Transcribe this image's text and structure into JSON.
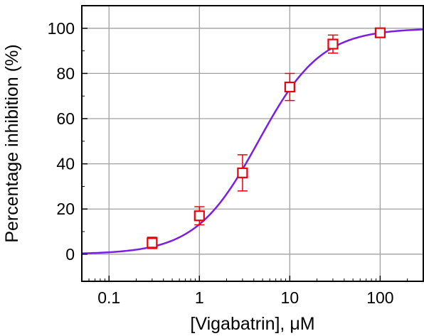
{
  "chart_data": {
    "type": "scatter",
    "xlabel": "[Vigabatrin], μM",
    "ylabel": "Percentage inhibition (%)",
    "x_scale": "log",
    "xlim": [
      0.05,
      300
    ],
    "ylim": [
      -12,
      110
    ],
    "grid": true,
    "x_ticks": [
      {
        "value": 0.1,
        "label": "0.1"
      },
      {
        "value": 1,
        "label": "1"
      },
      {
        "value": 10,
        "label": "10"
      },
      {
        "value": 100,
        "label": "100"
      }
    ],
    "y_ticks": [
      {
        "value": 0,
        "label": "0"
      },
      {
        "value": 20,
        "label": "20"
      },
      {
        "value": 40,
        "label": "40"
      },
      {
        "value": 60,
        "label": "60"
      },
      {
        "value": 80,
        "label": "80"
      },
      {
        "value": 100,
        "label": "100"
      }
    ],
    "points": [
      {
        "x": 0.3,
        "y": 5,
        "err_low": 2.5,
        "err_high": 7.5
      },
      {
        "x": 1,
        "y": 17,
        "err_low": 13,
        "err_high": 21
      },
      {
        "x": 3,
        "y": 36,
        "err_low": 28,
        "err_high": 44
      },
      {
        "x": 10,
        "y": 74,
        "err_low": 68,
        "err_high": 80
      },
      {
        "x": 30,
        "y": 93,
        "err_low": 89,
        "err_high": 97
      },
      {
        "x": 100,
        "y": 98,
        "err_low": 97,
        "err_high": 99
      }
    ],
    "fit": {
      "type": "hill",
      "bottom": 0,
      "top": 100,
      "ec50": 4.5,
      "hill_slope": 1.25
    },
    "colors": {
      "points": "#e8000b",
      "fit_line": "#7a1ee6",
      "grid": "#a0a0a0",
      "frame": "#000000"
    }
  }
}
